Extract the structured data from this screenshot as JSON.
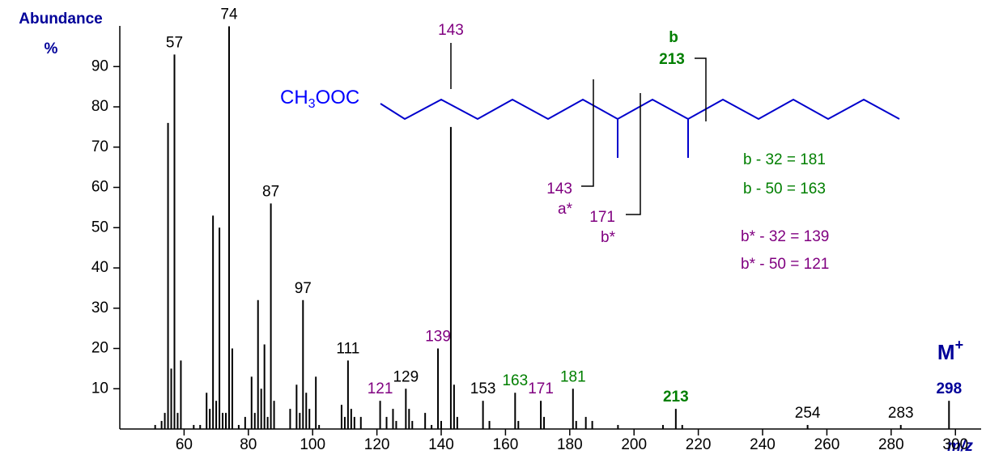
{
  "chart_data": {
    "type": "spectrum",
    "y_label": "Abundance",
    "y_unit": "%",
    "x_label": "m/z",
    "xlim": [
      40,
      308
    ],
    "xticks": [
      60,
      80,
      100,
      120,
      140,
      160,
      180,
      200,
      220,
      240,
      260,
      280,
      300
    ],
    "ylim": [
      0,
      100
    ],
    "yticks": [
      10,
      20,
      30,
      40,
      50,
      60,
      70,
      80,
      90
    ],
    "color": "#000000",
    "x": [
      51,
      53,
      54,
      55,
      56,
      57,
      58,
      59,
      63,
      65,
      67,
      68,
      69,
      70,
      71,
      72,
      73,
      74,
      75,
      77,
      79,
      81,
      82,
      83,
      84,
      85,
      86,
      87,
      88,
      93,
      95,
      96,
      97,
      98,
      99,
      101,
      102,
      109,
      110,
      111,
      112,
      113,
      115,
      121,
      123,
      125,
      126,
      129,
      130,
      131,
      135,
      137,
      139,
      140,
      143,
      144,
      145,
      153,
      155,
      163,
      164,
      171,
      172,
      181,
      182,
      185,
      187,
      195,
      209,
      213,
      215,
      254,
      283,
      298
    ],
    "values": [
      1,
      2,
      4,
      76,
      15,
      93,
      4,
      17,
      1,
      1,
      9,
      5,
      53,
      7,
      50,
      4,
      4,
      100,
      20,
      1,
      3,
      13,
      4,
      32,
      10,
      21,
      3,
      56,
      7,
      5,
      11,
      4,
      32,
      9,
      5,
      13,
      1,
      6,
      3,
      17,
      5,
      3,
      3,
      7,
      3,
      5,
      2,
      10,
      5,
      2,
      4,
      1,
      20,
      2,
      75,
      11,
      3,
      7,
      2,
      9,
      2,
      7,
      3,
      10,
      2,
      3,
      2,
      1,
      1,
      5,
      1,
      1,
      1,
      7
    ],
    "peak_labels": [
      {
        "mz": 57,
        "color": "#000000"
      },
      {
        "mz": 74,
        "color": "#000000"
      },
      {
        "mz": 87,
        "color": "#000000"
      },
      {
        "mz": 97,
        "color": "#000000"
      },
      {
        "mz": 111,
        "color": "#000000"
      },
      {
        "mz": 121,
        "color": "#800080"
      },
      {
        "mz": 129,
        "color": "#000000"
      },
      {
        "mz": 139,
        "color": "#800080"
      },
      {
        "mz": 153,
        "color": "#000000"
      },
      {
        "mz": 163,
        "color": "#007f00"
      },
      {
        "mz": 171,
        "color": "#800080"
      },
      {
        "mz": 181,
        "color": "#007f00"
      },
      {
        "mz": 213,
        "color": "#007f00",
        "bold": true
      },
      {
        "mz": 254,
        "color": "#000000"
      },
      {
        "mz": 283,
        "color": "#000000"
      },
      {
        "mz": 298,
        "color": "#000099",
        "bold": true
      }
    ],
    "molecular_ion": {
      "symbol": "M",
      "charge": "+"
    },
    "structure": {
      "formula": [
        "CH",
        "3",
        "OOC"
      ],
      "cleavages": [
        {
          "label": "143"
        },
        {
          "label": "143",
          "tag": "a*"
        },
        {
          "label": "171",
          "tag": "b*"
        },
        {
          "label": "213",
          "tag": "b"
        }
      ],
      "equations": [
        "b - 32 = 181",
        "b - 50 = 163",
        "b* - 32 = 139",
        "b* - 50 = 121"
      ]
    }
  }
}
